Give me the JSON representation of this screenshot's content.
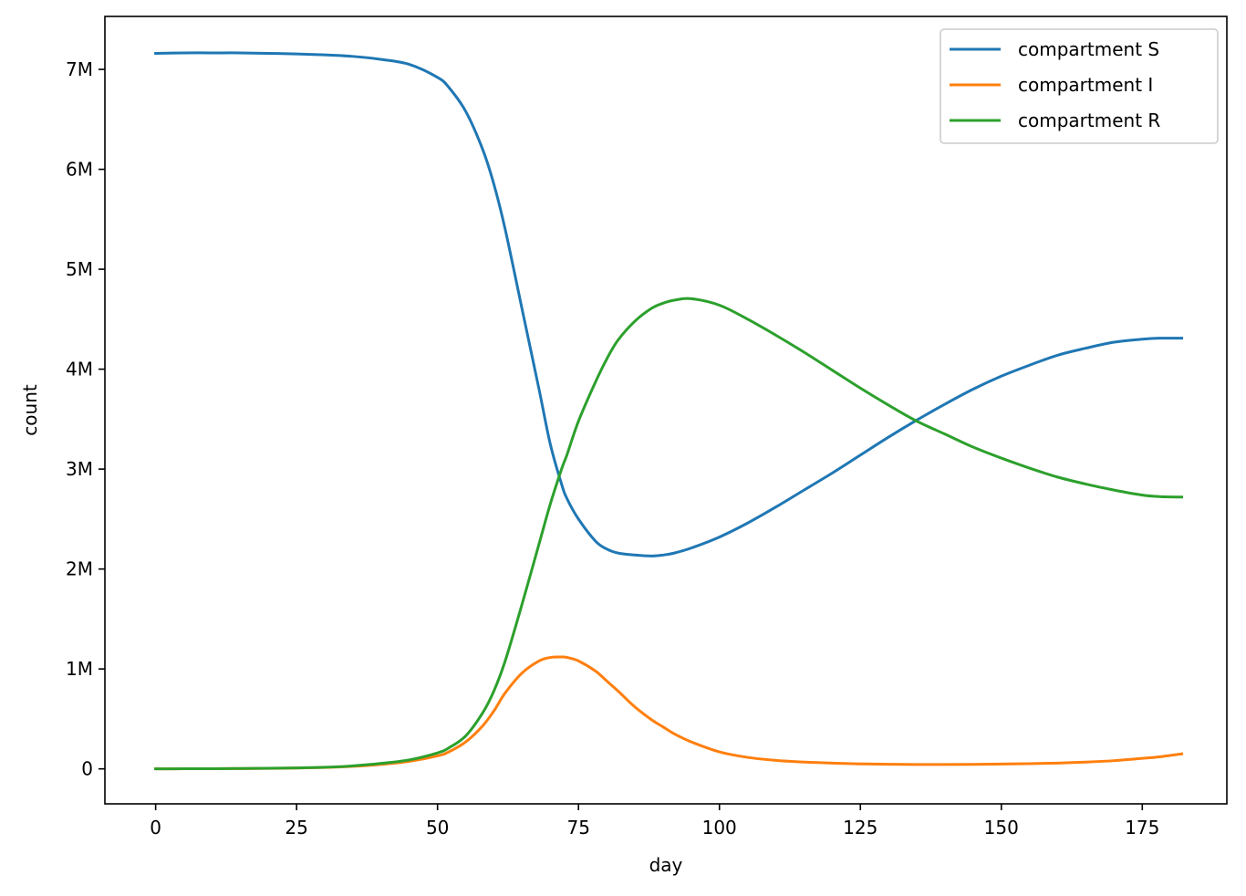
{
  "chart_data": {
    "type": "line",
    "title": "",
    "xlabel": "day",
    "ylabel": "count",
    "xlim": [
      -9,
      190
    ],
    "ylim": [
      -350000,
      7530000
    ],
    "xticks": [
      {
        "value": 0,
        "label": "0"
      },
      {
        "value": 25,
        "label": "25"
      },
      {
        "value": 50,
        "label": "50"
      },
      {
        "value": 75,
        "label": "75"
      },
      {
        "value": 100,
        "label": "100"
      },
      {
        "value": 125,
        "label": "125"
      },
      {
        "value": 150,
        "label": "150"
      },
      {
        "value": 175,
        "label": "175"
      }
    ],
    "yticks": [
      {
        "value": 0,
        "label": "0"
      },
      {
        "value": 1000000,
        "label": "1M"
      },
      {
        "value": 2000000,
        "label": "2M"
      },
      {
        "value": 3000000,
        "label": "3M"
      },
      {
        "value": 4000000,
        "label": "4M"
      },
      {
        "value": 5000000,
        "label": "5M"
      },
      {
        "value": 6000000,
        "label": "6M"
      },
      {
        "value": 7000000,
        "label": "7M"
      }
    ],
    "grid": false,
    "legend_position": "top-right",
    "x": [
      0,
      5,
      10,
      15,
      20,
      25,
      30,
      35,
      40,
      45,
      50,
      52,
      55,
      58,
      60,
      62,
      65,
      68,
      70,
      72,
      73,
      75,
      78,
      80,
      82,
      85,
      88,
      90,
      92,
      95,
      100,
      105,
      110,
      115,
      120,
      125,
      130,
      135,
      140,
      145,
      150,
      155,
      160,
      165,
      170,
      175,
      178,
      182
    ],
    "series": [
      {
        "name": "compartment S",
        "color": "#1f77b4",
        "values": [
          7160000,
          7165000,
          7165000,
          7165000,
          7160000,
          7155000,
          7145000,
          7130000,
          7100000,
          7050000,
          6920000,
          6820000,
          6580000,
          6200000,
          5850000,
          5400000,
          4600000,
          3800000,
          3250000,
          2850000,
          2700000,
          2500000,
          2280000,
          2200000,
          2160000,
          2140000,
          2130000,
          2140000,
          2160000,
          2210000,
          2320000,
          2460000,
          2620000,
          2790000,
          2960000,
          3140000,
          3320000,
          3490000,
          3650000,
          3800000,
          3930000,
          4040000,
          4140000,
          4210000,
          4270000,
          4300000,
          4310000,
          4310000
        ]
      },
      {
        "name": "compartment I",
        "color": "#ff7f0e",
        "values": [
          0,
          1000,
          2000,
          3000,
          5000,
          8000,
          14000,
          25000,
          45000,
          75000,
          130000,
          170000,
          270000,
          430000,
          580000,
          760000,
          960000,
          1080000,
          1115000,
          1120000,
          1115000,
          1080000,
          980000,
          880000,
          780000,
          620000,
          490000,
          420000,
          350000,
          270000,
          170000,
          115000,
          85000,
          68000,
          58000,
          50000,
          46000,
          44000,
          44000,
          45000,
          48000,
          52000,
          58000,
          68000,
          82000,
          105000,
          120000,
          150000
        ]
      },
      {
        "name": "compartment R",
        "color": "#2ca02c",
        "values": [
          0,
          1000,
          2000,
          4000,
          6000,
          10000,
          16000,
          30000,
          55000,
          90000,
          160000,
          210000,
          330000,
          560000,
          780000,
          1080000,
          1650000,
          2250000,
          2650000,
          3000000,
          3150000,
          3480000,
          3870000,
          4100000,
          4290000,
          4480000,
          4610000,
          4660000,
          4690000,
          4705000,
          4640000,
          4500000,
          4340000,
          4170000,
          3990000,
          3810000,
          3640000,
          3480000,
          3350000,
          3220000,
          3110000,
          3010000,
          2920000,
          2850000,
          2790000,
          2740000,
          2725000,
          2720000
        ]
      }
    ]
  }
}
